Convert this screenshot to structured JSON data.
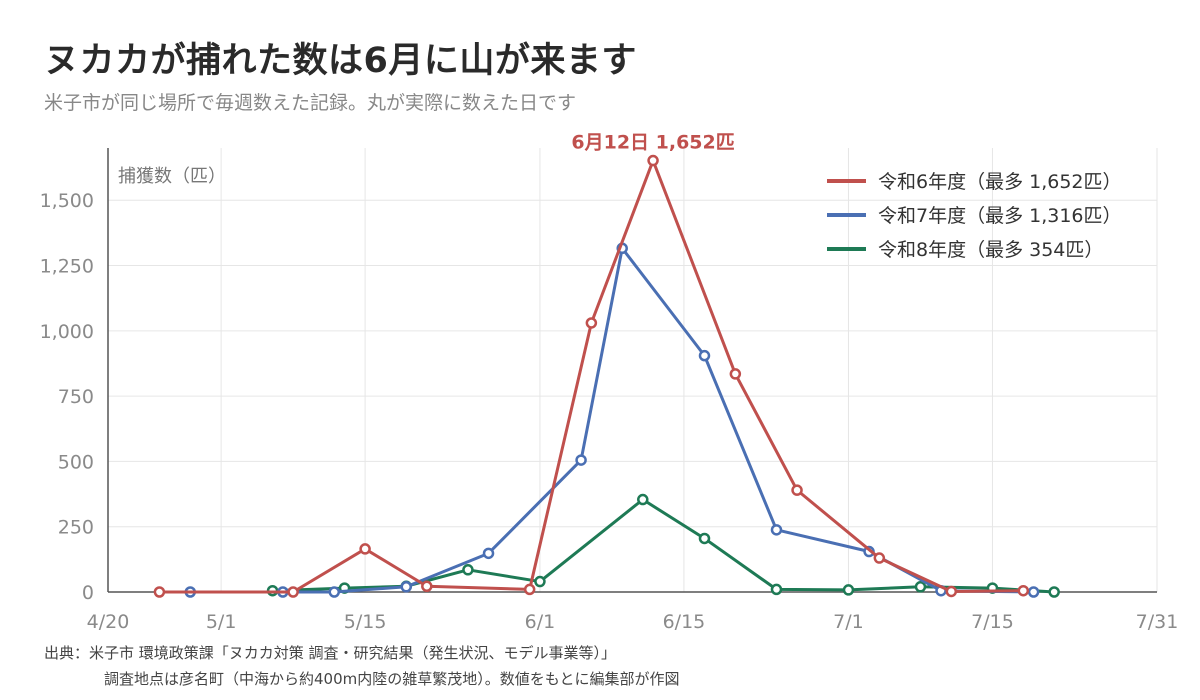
{
  "page": {
    "title": "ヌカカが捕れた数は6月に山が来ます",
    "subtitle": "米子市が同じ場所で毎週数えた記録。丸が実際に数えた日です",
    "source_line1": "出典：米子市 環境政策課「ヌカカ対策 調査・研究結果（発生状況、モデル事業等）」",
    "source_line2": "調査地点は彦名町（中海から約400m内陸の雑草繁茂地）。数値をもとに編集部が作図"
  },
  "chart_data": {
    "type": "line",
    "ylabel": "捕獲数（匹）",
    "ylim": [
      0,
      1700
    ],
    "yticks": [
      0,
      250,
      500,
      750,
      1000,
      1250,
      1500
    ],
    "ytick_labels": [
      "0",
      "250",
      "500",
      "750",
      "1,000",
      "1,250",
      "1,500"
    ],
    "xlim": [
      "4/20",
      "7/31"
    ],
    "xticks": [
      "4/20",
      "5/1",
      "5/15",
      "6/1",
      "6/15",
      "7/1",
      "7/15",
      "7/31"
    ],
    "grid": true,
    "legend_position": "top-right",
    "annotation": {
      "text": "6月12日 1,652匹",
      "x": "6/12",
      "y": 1652,
      "color": "#c0504d"
    },
    "series": [
      {
        "name": "令和6年度（最多 1,652匹）",
        "color": "#c0504d",
        "points": [
          {
            "x": "4/25",
            "y": 0
          },
          {
            "x": "5/8",
            "y": 0
          },
          {
            "x": "5/15",
            "y": 165
          },
          {
            "x": "5/21",
            "y": 22
          },
          {
            "x": "5/31",
            "y": 10
          },
          {
            "x": "6/6",
            "y": 1030
          },
          {
            "x": "6/12",
            "y": 1652
          },
          {
            "x": "6/20",
            "y": 835
          },
          {
            "x": "6/26",
            "y": 390
          },
          {
            "x": "7/4",
            "y": 130
          },
          {
            "x": "7/11",
            "y": 2
          },
          {
            "x": "7/18",
            "y": 5
          }
        ]
      },
      {
        "name": "令和7年度（最多 1,316匹）",
        "color": "#4a6fb3",
        "points": [
          {
            "x": "4/28",
            "y": 0
          },
          {
            "x": "5/7",
            "y": 0
          },
          {
            "x": "5/12",
            "y": 0
          },
          {
            "x": "5/19",
            "y": 20
          },
          {
            "x": "5/27",
            "y": 148
          },
          {
            "x": "6/5",
            "y": 505
          },
          {
            "x": "6/9",
            "y": 1316
          },
          {
            "x": "6/17",
            "y": 905
          },
          {
            "x": "6/24",
            "y": 238
          },
          {
            "x": "7/3",
            "y": 155
          },
          {
            "x": "7/10",
            "y": 5
          },
          {
            "x": "7/19",
            "y": 0
          }
        ]
      },
      {
        "name": "令和8年度（最多 354匹）",
        "color": "#1e7a55",
        "points": [
          {
            "x": "5/6",
            "y": 5
          },
          {
            "x": "5/13",
            "y": 15
          },
          {
            "x": "5/19",
            "y": 22
          },
          {
            "x": "5/25",
            "y": 85
          },
          {
            "x": "6/1",
            "y": 40
          },
          {
            "x": "6/11",
            "y": 354
          },
          {
            "x": "6/17",
            "y": 205
          },
          {
            "x": "6/24",
            "y": 10
          },
          {
            "x": "7/1",
            "y": 8
          },
          {
            "x": "7/8",
            "y": 20
          },
          {
            "x": "7/15",
            "y": 15
          },
          {
            "x": "7/21",
            "y": 0
          }
        ]
      }
    ]
  }
}
